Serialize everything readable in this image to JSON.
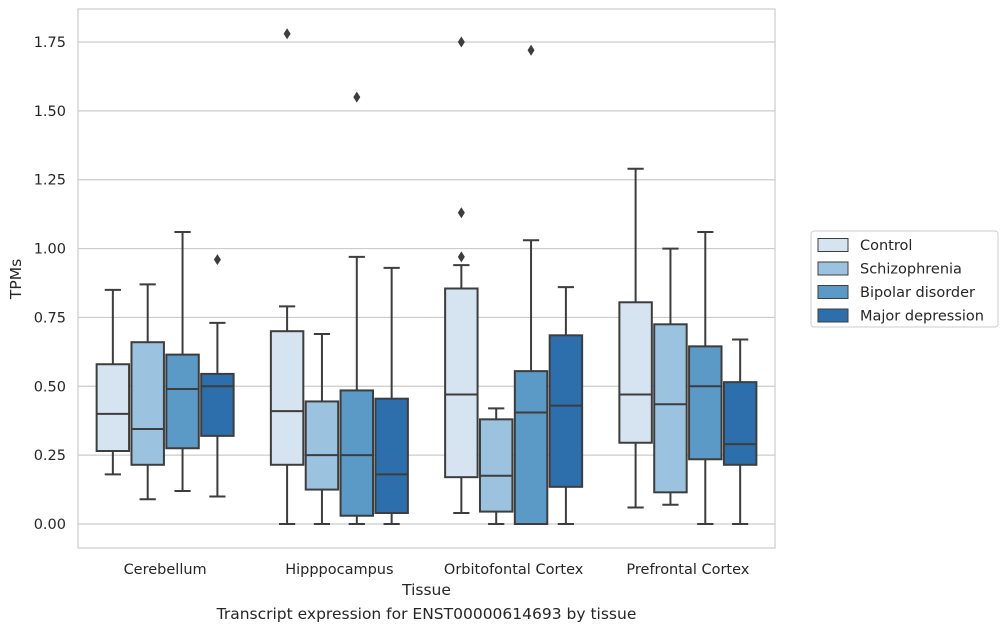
{
  "caption": "Transcript expression for ENST00000614693 by tissue",
  "chart_data": {
    "type": "box",
    "xlabel": "Tissue",
    "ylabel": "TPMs",
    "ylim": [
      -0.085,
      1.87
    ],
    "yticks": [
      0.0,
      0.25,
      0.5,
      0.75,
      1.0,
      1.25,
      1.5,
      1.75
    ],
    "ytick_labels": [
      "0.00",
      "0.25",
      "0.50",
      "0.75",
      "1.00",
      "1.25",
      "1.50",
      "1.75"
    ],
    "grid": "horizontal",
    "legend_position": "right",
    "categories": [
      "Cerebellum",
      "Hipppocampus",
      "Orbitofontal Cortex",
      "Prefrontal Cortex"
    ],
    "series": [
      {
        "name": "Control",
        "color": "#d6e4f2",
        "boxes": [
          {
            "whislo": 0.18,
            "q1": 0.265,
            "med": 0.4,
            "q3": 0.58,
            "whishi": 0.85,
            "fliers": []
          },
          {
            "whislo": 0.0,
            "q1": 0.215,
            "med": 0.41,
            "q3": 0.7,
            "whishi": 0.79,
            "fliers": [
              1.78
            ]
          },
          {
            "whislo": 0.04,
            "q1": 0.17,
            "med": 0.47,
            "q3": 0.855,
            "whishi": 0.94,
            "fliers": [
              1.75,
              1.13,
              0.97
            ]
          },
          {
            "whislo": 0.06,
            "q1": 0.295,
            "med": 0.47,
            "q3": 0.805,
            "whishi": 1.29,
            "fliers": []
          }
        ]
      },
      {
        "name": "Schizophrenia",
        "color": "#9bc3df",
        "boxes": [
          {
            "whislo": 0.09,
            "q1": 0.215,
            "med": 0.345,
            "q3": 0.66,
            "whishi": 0.87,
            "fliers": []
          },
          {
            "whislo": 0.0,
            "q1": 0.125,
            "med": 0.25,
            "q3": 0.445,
            "whishi": 0.69,
            "fliers": []
          },
          {
            "whislo": 0.0,
            "q1": 0.045,
            "med": 0.175,
            "q3": 0.38,
            "whishi": 0.42,
            "fliers": []
          },
          {
            "whislo": 0.07,
            "q1": 0.115,
            "med": 0.435,
            "q3": 0.725,
            "whishi": 1.0,
            "fliers": []
          }
        ]
      },
      {
        "name": "Bipolar disorder",
        "color": "#5b99c6",
        "boxes": [
          {
            "whislo": 0.12,
            "q1": 0.275,
            "med": 0.49,
            "q3": 0.615,
            "whishi": 1.06,
            "fliers": []
          },
          {
            "whislo": 0.0,
            "q1": 0.03,
            "med": 0.25,
            "q3": 0.485,
            "whishi": 0.97,
            "fliers": [
              1.55
            ]
          },
          {
            "whislo": 0.0,
            "q1": 0.0,
            "med": 0.405,
            "q3": 0.555,
            "whishi": 1.03,
            "fliers": [
              1.72
            ]
          },
          {
            "whislo": 0.0,
            "q1": 0.235,
            "med": 0.5,
            "q3": 0.645,
            "whishi": 1.06,
            "fliers": []
          }
        ]
      },
      {
        "name": "Major depression",
        "color": "#2d6fad",
        "boxes": [
          {
            "whislo": 0.1,
            "q1": 0.32,
            "med": 0.5,
            "q3": 0.545,
            "whishi": 0.73,
            "fliers": [
              0.96
            ]
          },
          {
            "whislo": 0.0,
            "q1": 0.04,
            "med": 0.18,
            "q3": 0.455,
            "whishi": 0.93,
            "fliers": []
          },
          {
            "whislo": 0.0,
            "q1": 0.135,
            "med": 0.43,
            "q3": 0.685,
            "whishi": 0.86,
            "fliers": []
          },
          {
            "whislo": 0.0,
            "q1": 0.215,
            "med": 0.29,
            "q3": 0.515,
            "whishi": 0.67,
            "fliers": []
          }
        ]
      }
    ]
  }
}
